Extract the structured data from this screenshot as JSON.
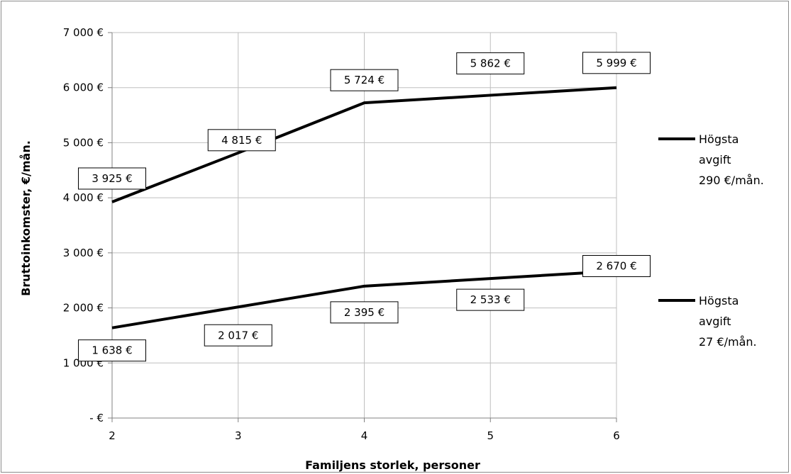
{
  "chart_data": {
    "type": "line",
    "title": "",
    "xlabel": "Familjens storlek, personer",
    "ylabel": "Bruttoinkomster, €/mån.",
    "x": [
      2,
      3,
      4,
      5,
      6
    ],
    "x_tick_labels": [
      "2",
      "3",
      "4",
      "5",
      "6"
    ],
    "ylim": [
      0,
      7000
    ],
    "y_tick_values": [
      0,
      1000,
      2000,
      3000,
      4000,
      5000,
      6000,
      7000
    ],
    "y_tick_labels": [
      "- €",
      "1 000 €",
      "2 000 €",
      "3 000 €",
      "4 000 €",
      "5 000 €",
      "6 000 €",
      "7 000 €"
    ],
    "grid": true,
    "legend_position": "right",
    "series": [
      {
        "name": "Högsta avgift 290 €/mån.",
        "legend_lines": [
          "Högsta",
          "avgift",
          "290 €/mån."
        ],
        "values": [
          3925,
          4815,
          5724,
          5862,
          5999
        ],
        "data_labels": [
          "3 925 €",
          "4 815 €",
          "5 724 €",
          "5 862 €",
          "5 999 €"
        ],
        "color": "#000000"
      },
      {
        "name": "Högsta avgift 27 €/mån.",
        "legend_lines": [
          "Högsta",
          "avgift",
          "27 €/mån."
        ],
        "values": [
          1638,
          2017,
          2395,
          2533,
          2670
        ],
        "data_labels": [
          "1 638 €",
          "2 017 €",
          "2 395 €",
          "2 533 €",
          "2 670 €"
        ],
        "color": "#000000"
      }
    ]
  }
}
